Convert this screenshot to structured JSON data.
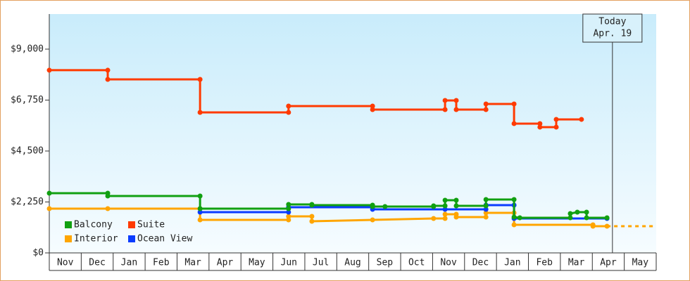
{
  "chart_data": {
    "type": "step-line",
    "xlim": [
      0,
      19
    ],
    "xticks": [
      {
        "value": 0.5,
        "label": "Nov"
      },
      {
        "value": 1.5,
        "label": "Dec"
      },
      {
        "value": 2.5,
        "label": "Jan"
      },
      {
        "value": 3.5,
        "label": "Feb"
      },
      {
        "value": 4.5,
        "label": "Mar"
      },
      {
        "value": 5.5,
        "label": "Apr"
      },
      {
        "value": 6.5,
        "label": "May"
      },
      {
        "value": 7.5,
        "label": "Jun"
      },
      {
        "value": 8.5,
        "label": "Jul"
      },
      {
        "value": 9.5,
        "label": "Aug"
      },
      {
        "value": 10.5,
        "label": "Sep"
      },
      {
        "value": 11.5,
        "label": "Oct"
      },
      {
        "value": 12.5,
        "label": "Nov"
      },
      {
        "value": 13.5,
        "label": "Dec"
      },
      {
        "value": 14.5,
        "label": "Jan"
      },
      {
        "value": 15.5,
        "label": "Feb"
      },
      {
        "value": 16.5,
        "label": "Mar"
      },
      {
        "value": 17.5,
        "label": "Apr"
      },
      {
        "value": 18.5,
        "label": "May"
      }
    ],
    "ylim": [
      0,
      10550
    ],
    "yticks": [
      {
        "value": 0,
        "label": "$0"
      },
      {
        "value": 2250,
        "label": "$2,250"
      },
      {
        "value": 4500,
        "label": "$4,500"
      },
      {
        "value": 6750,
        "label": "$6,750"
      },
      {
        "value": 9000,
        "label": "$9,000"
      }
    ],
    "legend": "bottom-left",
    "series": [
      {
        "name": "Balcony",
        "color": "#11a011",
        "x": [
          0,
          1.83,
          1.83,
          4.72,
          4.72,
          7.49,
          7.49,
          8.22,
          8.22,
          10.12,
          10.12,
          10.51,
          12.03,
          12.03,
          12.39,
          12.39,
          12.74,
          12.74,
          13.67,
          13.67,
          14.55,
          14.55,
          14.73,
          16.31,
          16.31,
          16.53,
          16.82,
          16.82,
          17.46
        ],
        "values": [
          2638,
          2638,
          2514,
          2514,
          1955,
          1955,
          2142,
          2142,
          2110,
          2110,
          2048,
          2048,
          2048,
          2079,
          2079,
          2328,
          2328,
          2079,
          2079,
          2359,
          2359,
          1583,
          1552,
          1552,
          1738,
          1800,
          1800,
          1552,
          1552
        ]
      },
      {
        "name": "Suite",
        "color": "#ff3a00",
        "x": [
          0,
          1.83,
          1.83,
          4.72,
          4.72,
          7.49,
          7.49,
          10.12,
          10.12,
          12.39,
          12.39,
          12.74,
          12.74,
          13.67,
          13.67,
          14.55,
          14.55,
          15.36,
          15.36,
          15.87,
          15.87,
          16.66
        ],
        "values": [
          8070,
          8070,
          7665,
          7665,
          6207,
          6207,
          6486,
          6486,
          6331,
          6331,
          6735,
          6735,
          6331,
          6331,
          6580,
          6580,
          5711,
          5711,
          5556,
          5556,
          5897,
          5897
        ]
      },
      {
        "name": "Interior",
        "color": "#ffa500",
        "x": [
          0,
          1.83,
          4.72,
          4.72,
          7.49,
          7.49,
          8.22,
          8.22,
          10.12,
          12.03,
          12.39,
          12.39,
          12.74,
          12.74,
          13.67,
          13.67,
          14.55,
          14.55,
          17.02,
          17.02,
          17.46
        ],
        "values": [
          1955,
          1955,
          1955,
          1459,
          1459,
          1614,
          1614,
          1397,
          1459,
          1521,
          1521,
          1707,
          1707,
          1583,
          1583,
          1769,
          1769,
          1241,
          1241,
          1180,
          1180
        ]
      },
      {
        "name": "Ocean View",
        "color": "#0a3cff",
        "x": [
          4.72,
          7.49,
          7.49,
          10.12,
          10.12,
          12.39,
          13.67,
          13.67,
          14.55,
          14.55,
          17.46
        ],
        "values": [
          1800,
          1800,
          2017,
          2017,
          1924,
          1924,
          1924,
          2110,
          2110,
          1521,
          1521
        ]
      }
    ],
    "annotation": {
      "x": 17.63,
      "lines": [
        "Today",
        "Apr. 19"
      ]
    }
  }
}
